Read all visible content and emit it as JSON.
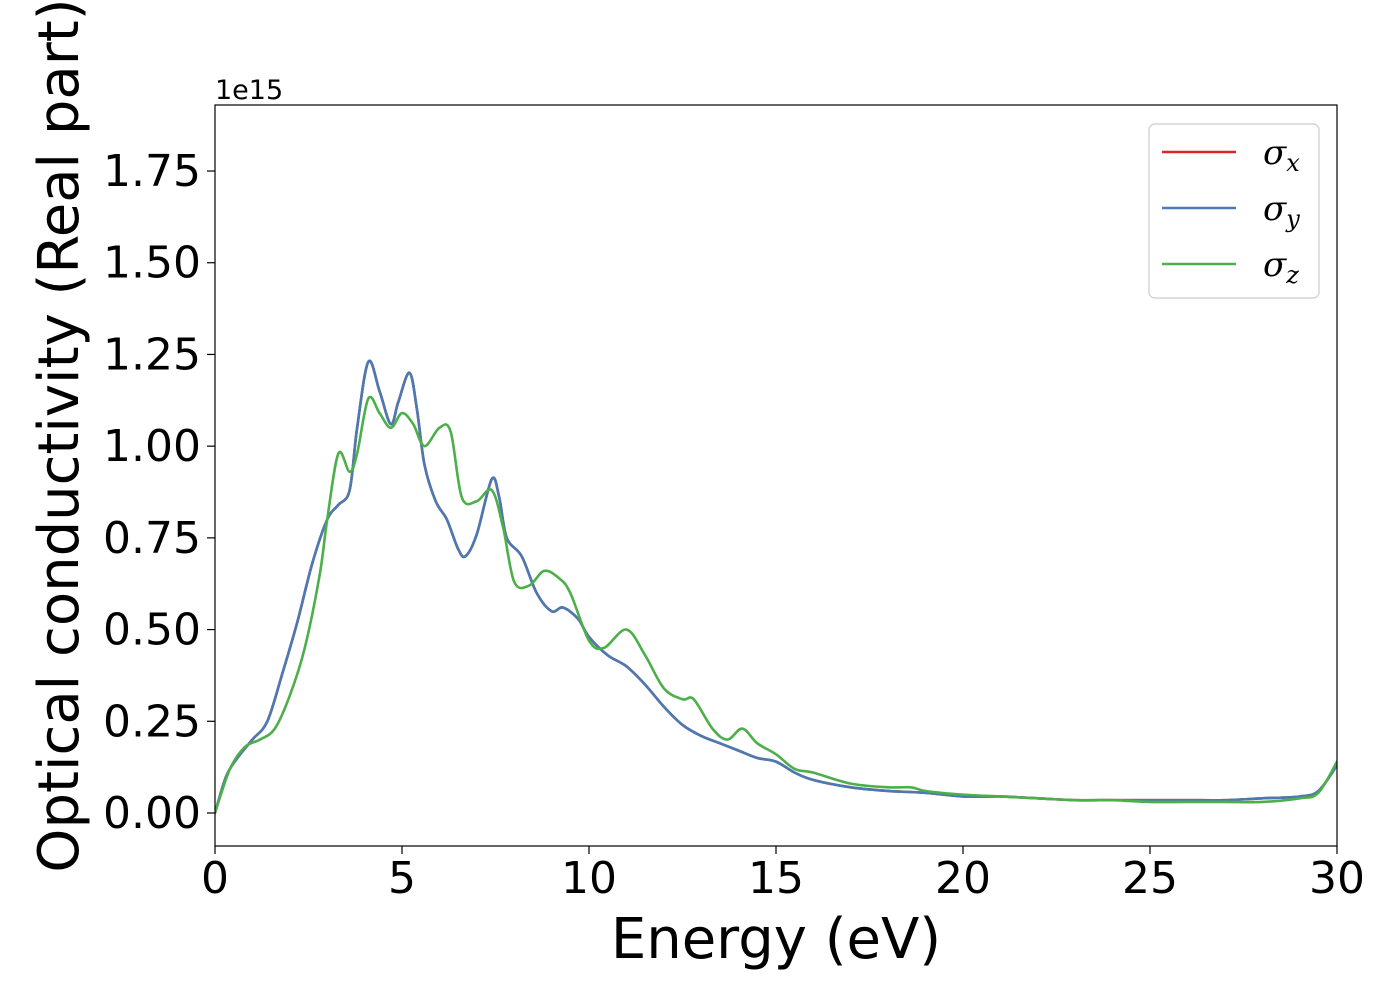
{
  "chart_data": {
    "type": "line",
    "xlabel": "Energy (eV)",
    "ylabel": "Optical conductivity (Real part)",
    "y_offset_label": "1e15",
    "xlim": [
      0,
      30
    ],
    "ylim": [
      -0.09,
      1.93
    ],
    "y_scale": 1000000000000000.0,
    "grid": false,
    "legend_position": "top-right",
    "x_ticks": [
      0,
      5,
      10,
      15,
      20,
      25,
      30
    ],
    "x_tick_labels": [
      "0",
      "5",
      "10",
      "15",
      "20",
      "25",
      "30"
    ],
    "y_ticks": [
      0.0,
      0.25,
      0.5,
      0.75,
      1.0,
      1.25,
      1.5,
      1.75
    ],
    "y_tick_labels": [
      "0.00",
      "0.25",
      "0.50",
      "0.75",
      "1.00",
      "1.25",
      "1.50",
      "1.75"
    ],
    "series": [
      {
        "name": "σx",
        "symbol": "σ",
        "subscript": "x",
        "color": "#d62728",
        "x": [
          0,
          0.3,
          0.6,
          1.0,
          1.4,
          1.8,
          2.2,
          2.6,
          3.0,
          3.3,
          3.6,
          3.8,
          4.1,
          4.4,
          4.7,
          4.9,
          5.2,
          5.4,
          5.6,
          5.9,
          6.2,
          6.5,
          6.7,
          7.0,
          7.4,
          7.6,
          7.8,
          8.2,
          8.6,
          9.0,
          9.3,
          9.7,
          10.0,
          10.5,
          11.0,
          11.5,
          12.0,
          12.5,
          13.0,
          13.5,
          14.0,
          14.5,
          15.0,
          15.5,
          16.0,
          17.0,
          18.0,
          19.0,
          20.0,
          21.0,
          22.0,
          23.0,
          24.0,
          25.0,
          26.0,
          27.0,
          28.0,
          29.0,
          29.5,
          30.0
        ],
        "y": [
          0.0,
          0.1,
          0.15,
          0.2,
          0.25,
          0.38,
          0.52,
          0.68,
          0.8,
          0.84,
          0.88,
          1.05,
          1.23,
          1.15,
          1.06,
          1.12,
          1.2,
          1.1,
          0.95,
          0.85,
          0.8,
          0.72,
          0.7,
          0.76,
          0.91,
          0.86,
          0.75,
          0.7,
          0.6,
          0.55,
          0.56,
          0.53,
          0.48,
          0.43,
          0.4,
          0.35,
          0.29,
          0.24,
          0.21,
          0.19,
          0.17,
          0.15,
          0.14,
          0.11,
          0.09,
          0.07,
          0.06,
          0.055,
          0.045,
          0.045,
          0.04,
          0.035,
          0.035,
          0.035,
          0.035,
          0.035,
          0.04,
          0.045,
          0.06,
          0.13
        ]
      },
      {
        "name": "σy",
        "symbol": "σ",
        "subscript": "y",
        "color": "#4a7ab3",
        "x": [
          0,
          0.3,
          0.6,
          1.0,
          1.4,
          1.8,
          2.2,
          2.6,
          3.0,
          3.3,
          3.6,
          3.8,
          4.1,
          4.4,
          4.7,
          4.9,
          5.2,
          5.4,
          5.6,
          5.9,
          6.2,
          6.5,
          6.7,
          7.0,
          7.4,
          7.6,
          7.8,
          8.2,
          8.6,
          9.0,
          9.3,
          9.7,
          10.0,
          10.5,
          11.0,
          11.5,
          12.0,
          12.5,
          13.0,
          13.5,
          14.0,
          14.5,
          15.0,
          15.5,
          16.0,
          17.0,
          18.0,
          19.0,
          20.0,
          21.0,
          22.0,
          23.0,
          24.0,
          25.0,
          26.0,
          27.0,
          28.0,
          29.0,
          29.5,
          30.0
        ],
        "y": [
          0.0,
          0.1,
          0.15,
          0.2,
          0.25,
          0.38,
          0.52,
          0.68,
          0.8,
          0.84,
          0.88,
          1.05,
          1.23,
          1.15,
          1.06,
          1.12,
          1.2,
          1.1,
          0.95,
          0.85,
          0.8,
          0.72,
          0.7,
          0.76,
          0.91,
          0.86,
          0.75,
          0.7,
          0.6,
          0.55,
          0.56,
          0.53,
          0.48,
          0.43,
          0.4,
          0.35,
          0.29,
          0.24,
          0.21,
          0.19,
          0.17,
          0.15,
          0.14,
          0.11,
          0.09,
          0.07,
          0.06,
          0.055,
          0.045,
          0.045,
          0.04,
          0.035,
          0.035,
          0.035,
          0.035,
          0.035,
          0.04,
          0.045,
          0.06,
          0.13
        ]
      },
      {
        "name": "σz",
        "symbol": "σ",
        "subscript": "z",
        "color": "#4daf4a",
        "x": [
          0,
          0.4,
          0.8,
          1.2,
          1.6,
          2.0,
          2.4,
          2.8,
          3.0,
          3.3,
          3.6,
          3.8,
          4.1,
          4.4,
          4.7,
          5.0,
          5.3,
          5.6,
          6.0,
          6.3,
          6.6,
          7.0,
          7.4,
          7.7,
          8.0,
          8.4,
          8.8,
          9.2,
          9.5,
          10.0,
          10.4,
          11.0,
          11.5,
          12.0,
          12.5,
          12.8,
          13.3,
          13.7,
          14.1,
          14.5,
          15.0,
          15.5,
          16.0,
          17.0,
          18.0,
          18.6,
          19.0,
          20.0,
          21.0,
          22.0,
          23.0,
          24.0,
          25.0,
          26.0,
          27.0,
          28.0,
          29.0,
          29.5,
          30.0
        ],
        "y": [
          0.0,
          0.12,
          0.18,
          0.2,
          0.23,
          0.32,
          0.45,
          0.65,
          0.8,
          0.98,
          0.93,
          0.98,
          1.13,
          1.09,
          1.05,
          1.09,
          1.06,
          1.0,
          1.05,
          1.04,
          0.86,
          0.85,
          0.88,
          0.78,
          0.63,
          0.62,
          0.66,
          0.64,
          0.6,
          0.47,
          0.45,
          0.5,
          0.43,
          0.34,
          0.31,
          0.31,
          0.23,
          0.2,
          0.23,
          0.19,
          0.16,
          0.12,
          0.11,
          0.08,
          0.07,
          0.07,
          0.06,
          0.05,
          0.045,
          0.04,
          0.035,
          0.035,
          0.03,
          0.03,
          0.03,
          0.03,
          0.04,
          0.055,
          0.14
        ]
      }
    ]
  }
}
